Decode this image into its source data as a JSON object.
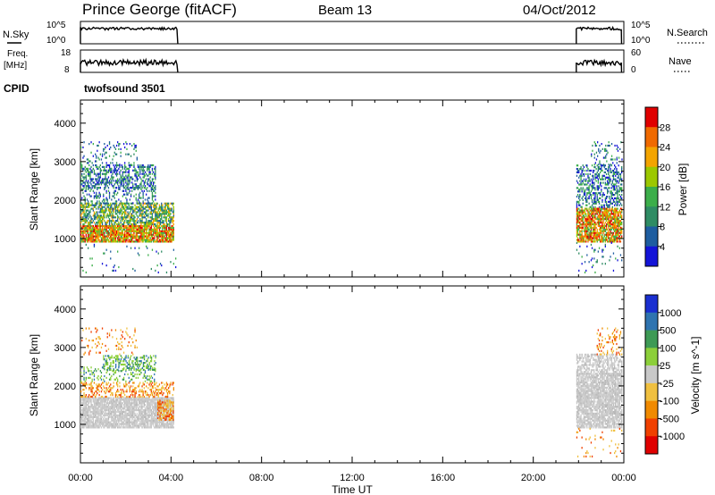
{
  "header": {
    "station": "Prince George (fitACF)",
    "beam": "Beam 13",
    "date": "04/Oct/2012"
  },
  "noise_panel": {
    "left_label": "N.Sky",
    "left_ticks": [
      "10^5",
      "10^0"
    ],
    "right_ticks": [
      "10^5",
      "10^0"
    ],
    "right_label": "N.Search"
  },
  "freq_panel": {
    "left_label_1": "Freq.",
    "left_label_2": "[MHz]",
    "left_ticks": [
      "18",
      "8"
    ],
    "right_ticks": [
      "60",
      "0"
    ],
    "right_label": "Nave"
  },
  "cpid": {
    "label": "CPID",
    "value": "twofsound 3501"
  },
  "chart_data": [
    {
      "type": "heatmap",
      "quantity": "power",
      "ylabel": "Slant Range [km]",
      "ylim": [
        0,
        4600
      ],
      "yticks": [
        "4000",
        "3000",
        "2000",
        "1000"
      ],
      "ytick_values": [
        4000,
        3000,
        2000,
        1000
      ],
      "xlim": [
        0,
        24
      ],
      "colorbar_label": "Power [dB]",
      "colorbar_ticks": [
        "28",
        "24",
        "20",
        "16",
        "12",
        "8",
        "4"
      ],
      "colorbar_colors": [
        "#e00000",
        "#f06a00",
        "#f3a400",
        "#9cc800",
        "#3cae4a",
        "#2f8c64",
        "#1e5da0",
        "#1414d8"
      ],
      "data_windows_hours": [
        [
          0.0,
          4.3
        ],
        [
          21.9,
          23.9
        ]
      ],
      "echo_bands": [
        {
          "t0": 0.0,
          "t1": 4.1,
          "r0": 900,
          "r1": 1400,
          "level": "strong"
        },
        {
          "t0": 0.0,
          "t1": 4.1,
          "r0": 1400,
          "r1": 1900,
          "level": "medium"
        },
        {
          "t0": 0.0,
          "t1": 3.3,
          "r0": 2300,
          "r1": 2900,
          "level": "weak"
        },
        {
          "t0": 21.9,
          "t1": 23.9,
          "r0": 900,
          "r1": 1800,
          "level": "strong"
        },
        {
          "t0": 21.9,
          "t1": 23.9,
          "r0": 1800,
          "r1": 2900,
          "level": "weak"
        }
      ]
    },
    {
      "type": "heatmap",
      "quantity": "velocity",
      "ylabel": "Slant Range [km]",
      "ylim": [
        0,
        4600
      ],
      "yticks": [
        "4000",
        "3000",
        "2000",
        "1000"
      ],
      "ytick_values": [
        4000,
        3000,
        2000,
        1000
      ],
      "xlim": [
        0,
        24
      ],
      "xlabel": "Time UT",
      "xticks": [
        "00:00",
        "04:00",
        "08:00",
        "12:00",
        "16:00",
        "20:00",
        "00:00"
      ],
      "colorbar_label": "Velocity [m s^-1]",
      "colorbar_ticks": [
        "1000",
        "500",
        "100",
        "25",
        "-25",
        "-100",
        "-500",
        "-1000"
      ],
      "colorbar_colors": [
        "#1a2fd0",
        "#2f74b0",
        "#3e9a55",
        "#8ccf3a",
        "#c8c8c8",
        "#f0c040",
        "#f08a00",
        "#f04000",
        "#e00000"
      ],
      "data_windows_hours": [
        [
          0.0,
          4.3
        ],
        [
          21.9,
          23.9
        ]
      ]
    }
  ]
}
